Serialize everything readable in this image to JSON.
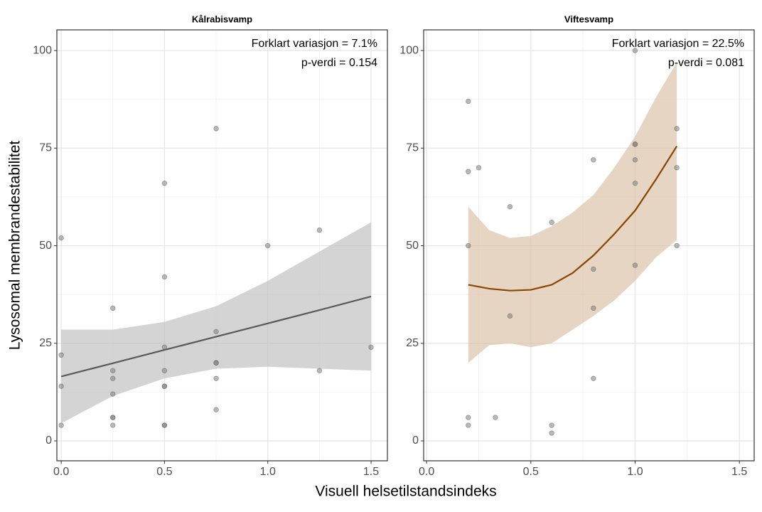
{
  "xlabel": "Visuell helsetilstandsindeks",
  "ylabel": "Lysosomal membrandestabilitet",
  "chart_data": [
    {
      "type": "scatter",
      "title": "Kålrabisvamp",
      "annotations": [
        "Forklart variasjon = 7.1%",
        "p-verdi = 0.154"
      ],
      "xlim": [
        -0.021,
        1.579
      ],
      "ylim": [
        -5.1,
        105.3
      ],
      "xticks": [
        {
          "value": 0,
          "label": "0.0"
        },
        0.5,
        {
          "value": 1,
          "label": "1.0"
        },
        1.5
      ],
      "yticks": [
        0,
        25,
        50,
        75,
        100
      ],
      "xminor": [
        0.25,
        0.75,
        1.25
      ],
      "yminor": [
        12.5,
        37.5,
        62.5,
        87.5
      ],
      "grid": true,
      "points": {
        "color": "#7f7f7f",
        "x": [
          0,
          0,
          0,
          0,
          0.25,
          0.25,
          0.25,
          0.25,
          0.25,
          0.25,
          0.25,
          0.5,
          0.5,
          0.5,
          0.5,
          0.5,
          0.5,
          0.5,
          0.5,
          0.75,
          0.75,
          0.75,
          0.75,
          0.75,
          0.75,
          1.0,
          1.25,
          1.25,
          1.5
        ],
        "y": [
          52,
          22,
          14,
          4,
          34,
          18,
          16,
          12,
          6,
          6,
          4,
          66,
          42,
          24,
          18,
          14,
          14,
          4,
          4,
          80,
          28,
          20,
          20,
          16,
          8,
          50,
          54,
          18,
          24
        ]
      },
      "fit": {
        "color": "#595959",
        "band_color": "#bdbdbd",
        "x": [
          0,
          0.25,
          0.5,
          0.75,
          1.0,
          1.25,
          1.5
        ],
        "y": [
          16.5,
          19.9,
          23.3,
          26.7,
          30.1,
          33.5,
          37
        ],
        "lower": [
          4.5,
          11.5,
          16,
          18.5,
          19,
          18.5,
          18
        ],
        "upper": [
          28.5,
          28.5,
          30.5,
          34.5,
          41,
          48.5,
          56
        ]
      }
    },
    {
      "type": "scatter",
      "title": "Viftesvamp",
      "annotations": [
        "Forklart variasjon = 22.5%",
        "p-verdi = 0.081"
      ],
      "xlim": [
        -0.014,
        1.571
      ],
      "ylim": [
        -5.1,
        105.3
      ],
      "xticks": [
        {
          "value": 0,
          "label": "0.0"
        },
        0.5,
        {
          "value": 1,
          "label": "1.0"
        },
        1.5
      ],
      "yticks": [
        0,
        25,
        50,
        75,
        100
      ],
      "xminor": [
        0.25,
        0.75,
        1.25
      ],
      "yminor": [
        12.5,
        37.5,
        62.5,
        87.5
      ],
      "grid": true,
      "points": {
        "color": "#7f7f7f",
        "x": [
          0.2,
          0.2,
          0.2,
          0.2,
          0.2,
          0.25,
          0.33,
          0.4,
          0.4,
          0.6,
          0.6,
          0.6,
          0.8,
          0.8,
          0.8,
          0.8,
          1.0,
          1.0,
          1.0,
          1.0,
          1.0,
          1.0,
          1.2,
          1.2,
          1.2
        ],
        "y": [
          87,
          69,
          50,
          6,
          4,
          70,
          6,
          60,
          32,
          56,
          4,
          2,
          72,
          44,
          34,
          16,
          100,
          76,
          76,
          72,
          66,
          45,
          80,
          70,
          50
        ]
      },
      "fit": {
        "color": "#8b4500",
        "band_color": "#d9bfa3",
        "x": [
          0.2,
          0.3,
          0.4,
          0.5,
          0.6,
          0.7,
          0.8,
          0.9,
          1.0,
          1.1,
          1.2
        ],
        "y": [
          40,
          39,
          38.5,
          38.7,
          40,
          43,
          47.5,
          53,
          59,
          67,
          75.5
        ],
        "lower": [
          20,
          24.5,
          25,
          24,
          25,
          28.5,
          32,
          36,
          41,
          47,
          51.5
        ],
        "upper": [
          60,
          54,
          52,
          52.5,
          55,
          58.5,
          63,
          70,
          78,
          88,
          97
        ]
      }
    }
  ]
}
